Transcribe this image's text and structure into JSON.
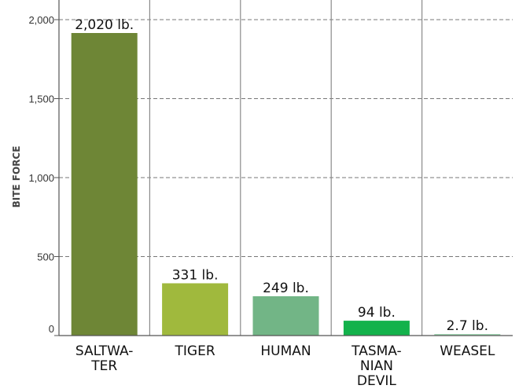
{
  "chart_data": {
    "type": "bar",
    "title": "",
    "xlabel": "",
    "ylabel": "BITE FORCE",
    "ylim": [
      0,
      2000
    ],
    "yticks": [
      0,
      500,
      1000,
      1500,
      2000
    ],
    "ytick_labels": [
      "0",
      "500",
      "1,000",
      "1,500",
      "2,000"
    ],
    "grid": true,
    "categories": [
      {
        "lines": [
          "SALTWA-",
          "TER"
        ]
      },
      {
        "lines": [
          "TIGER"
        ]
      },
      {
        "lines": [
          "HUMAN"
        ]
      },
      {
        "lines": [
          "TASMA-",
          "NIAN",
          "DEVIL"
        ]
      },
      {
        "lines": [
          "WEASEL"
        ]
      }
    ],
    "values": [
      2020,
      331,
      249,
      94,
      2.7
    ],
    "data_labels": [
      "2,020 lb.",
      "331 lb.",
      "249 lb.",
      "94 lb.",
      "2.7 lb."
    ],
    "colors": [
      "#6e8636",
      "#a0b93d",
      "#72b586",
      "#13b24b",
      "#9fd5b0"
    ]
  }
}
